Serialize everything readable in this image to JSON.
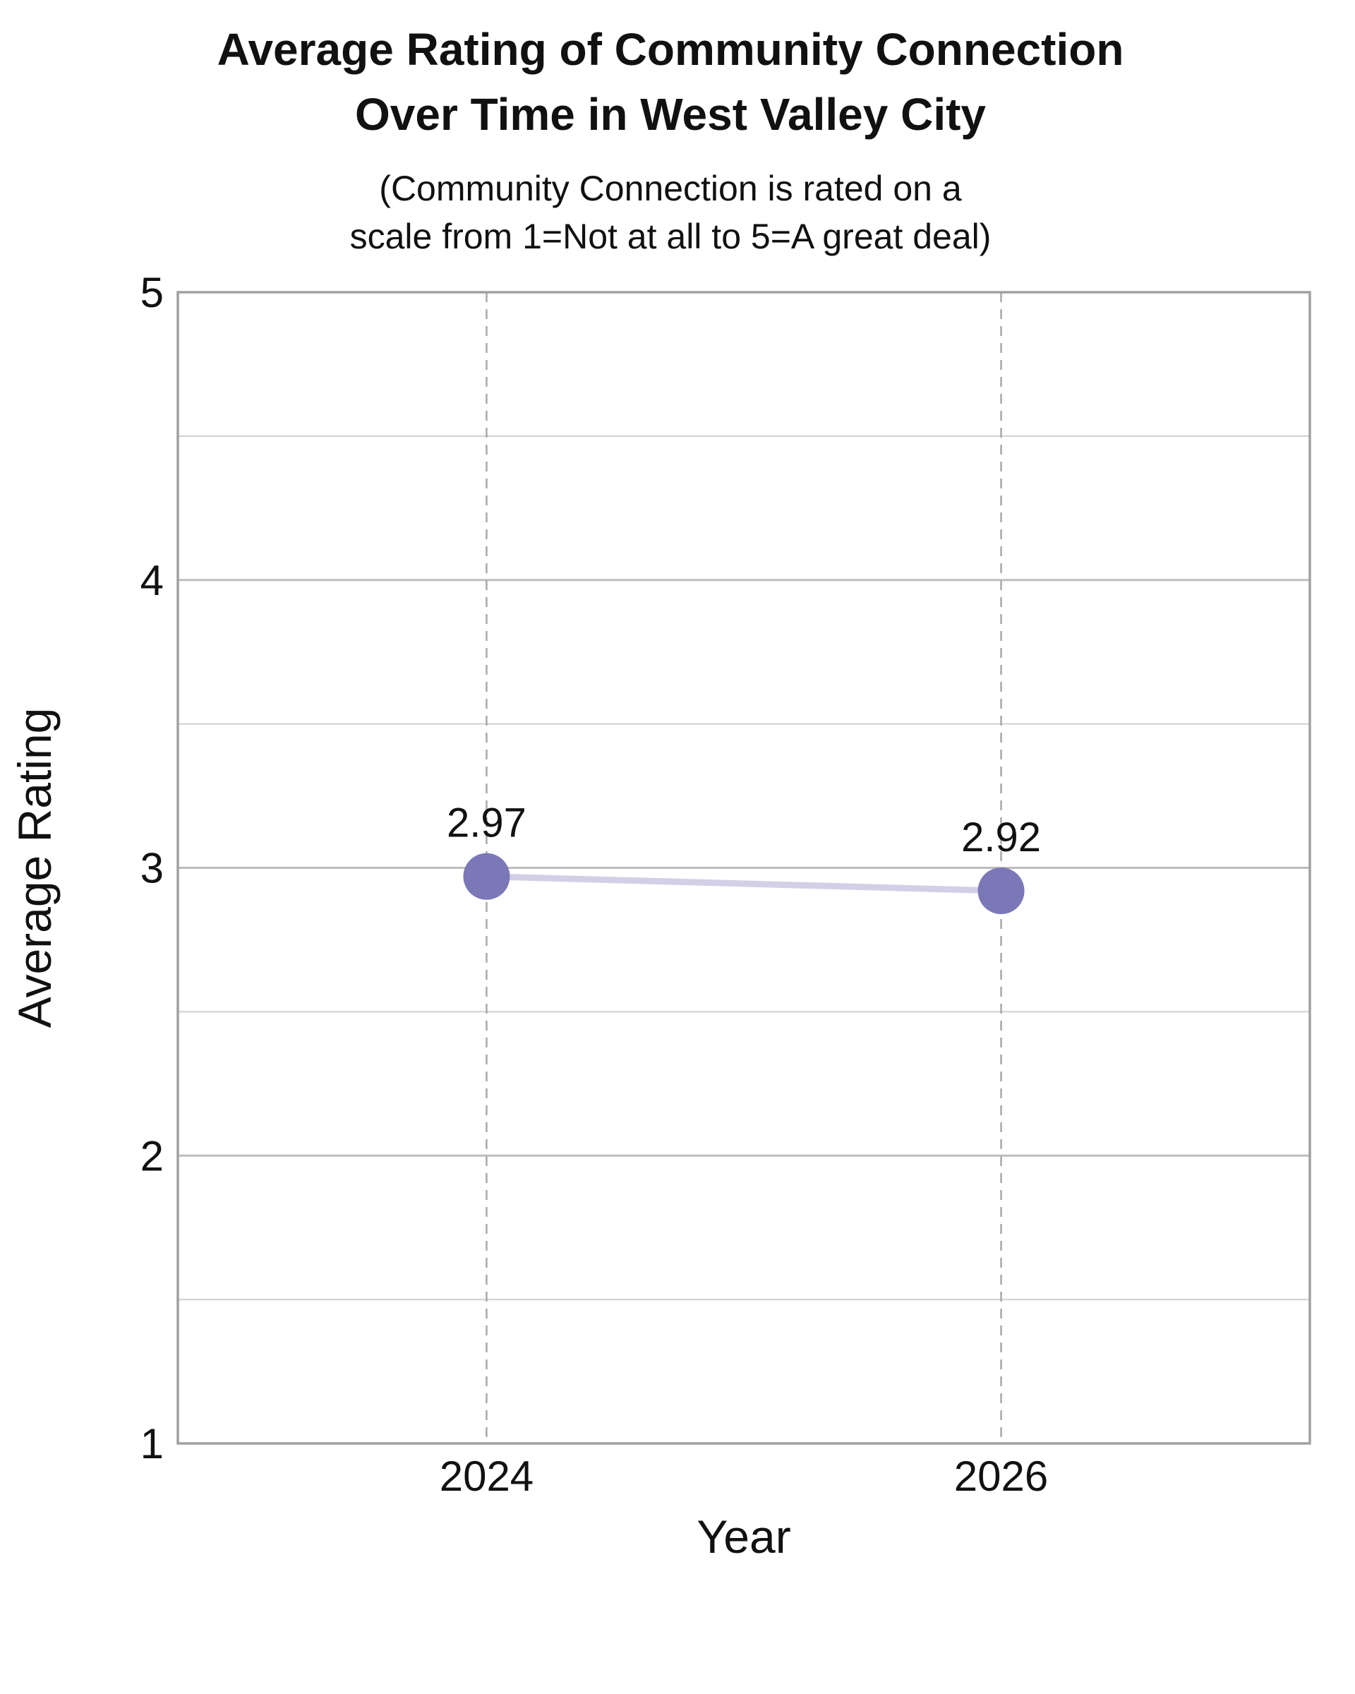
{
  "chart_data": {
    "type": "line",
    "title_lines": [
      "Average Rating of Community Connection",
      "Over Time in West Valley City"
    ],
    "subtitle_lines": [
      "(Community Connection is rated on a",
      "scale from 1=Not at all to 5=A great deal)"
    ],
    "xlabel": "Year",
    "ylabel": "Average Rating",
    "x": [
      2024,
      2026
    ],
    "x_tick_labels": [
      "2024",
      "2026"
    ],
    "xlim": [
      2022.8,
      2027.2
    ],
    "ylim": [
      1,
      5
    ],
    "y_ticks": [
      1,
      2,
      3,
      4,
      5
    ],
    "y_minor_ticks": [
      1.5,
      2.5,
      3.5,
      4.5
    ],
    "grid": true,
    "series": [
      {
        "values": [
          2.97,
          2.92
        ],
        "data_labels": [
          "2.97",
          "2.92"
        ],
        "marker_color": "#7b78b8",
        "line_color": "#d2d0e6"
      }
    ],
    "colors": {
      "axis": "#a0a0a0",
      "grid": "#bdbdbd",
      "vgrid_dashed": "#a8a8a8"
    }
  }
}
